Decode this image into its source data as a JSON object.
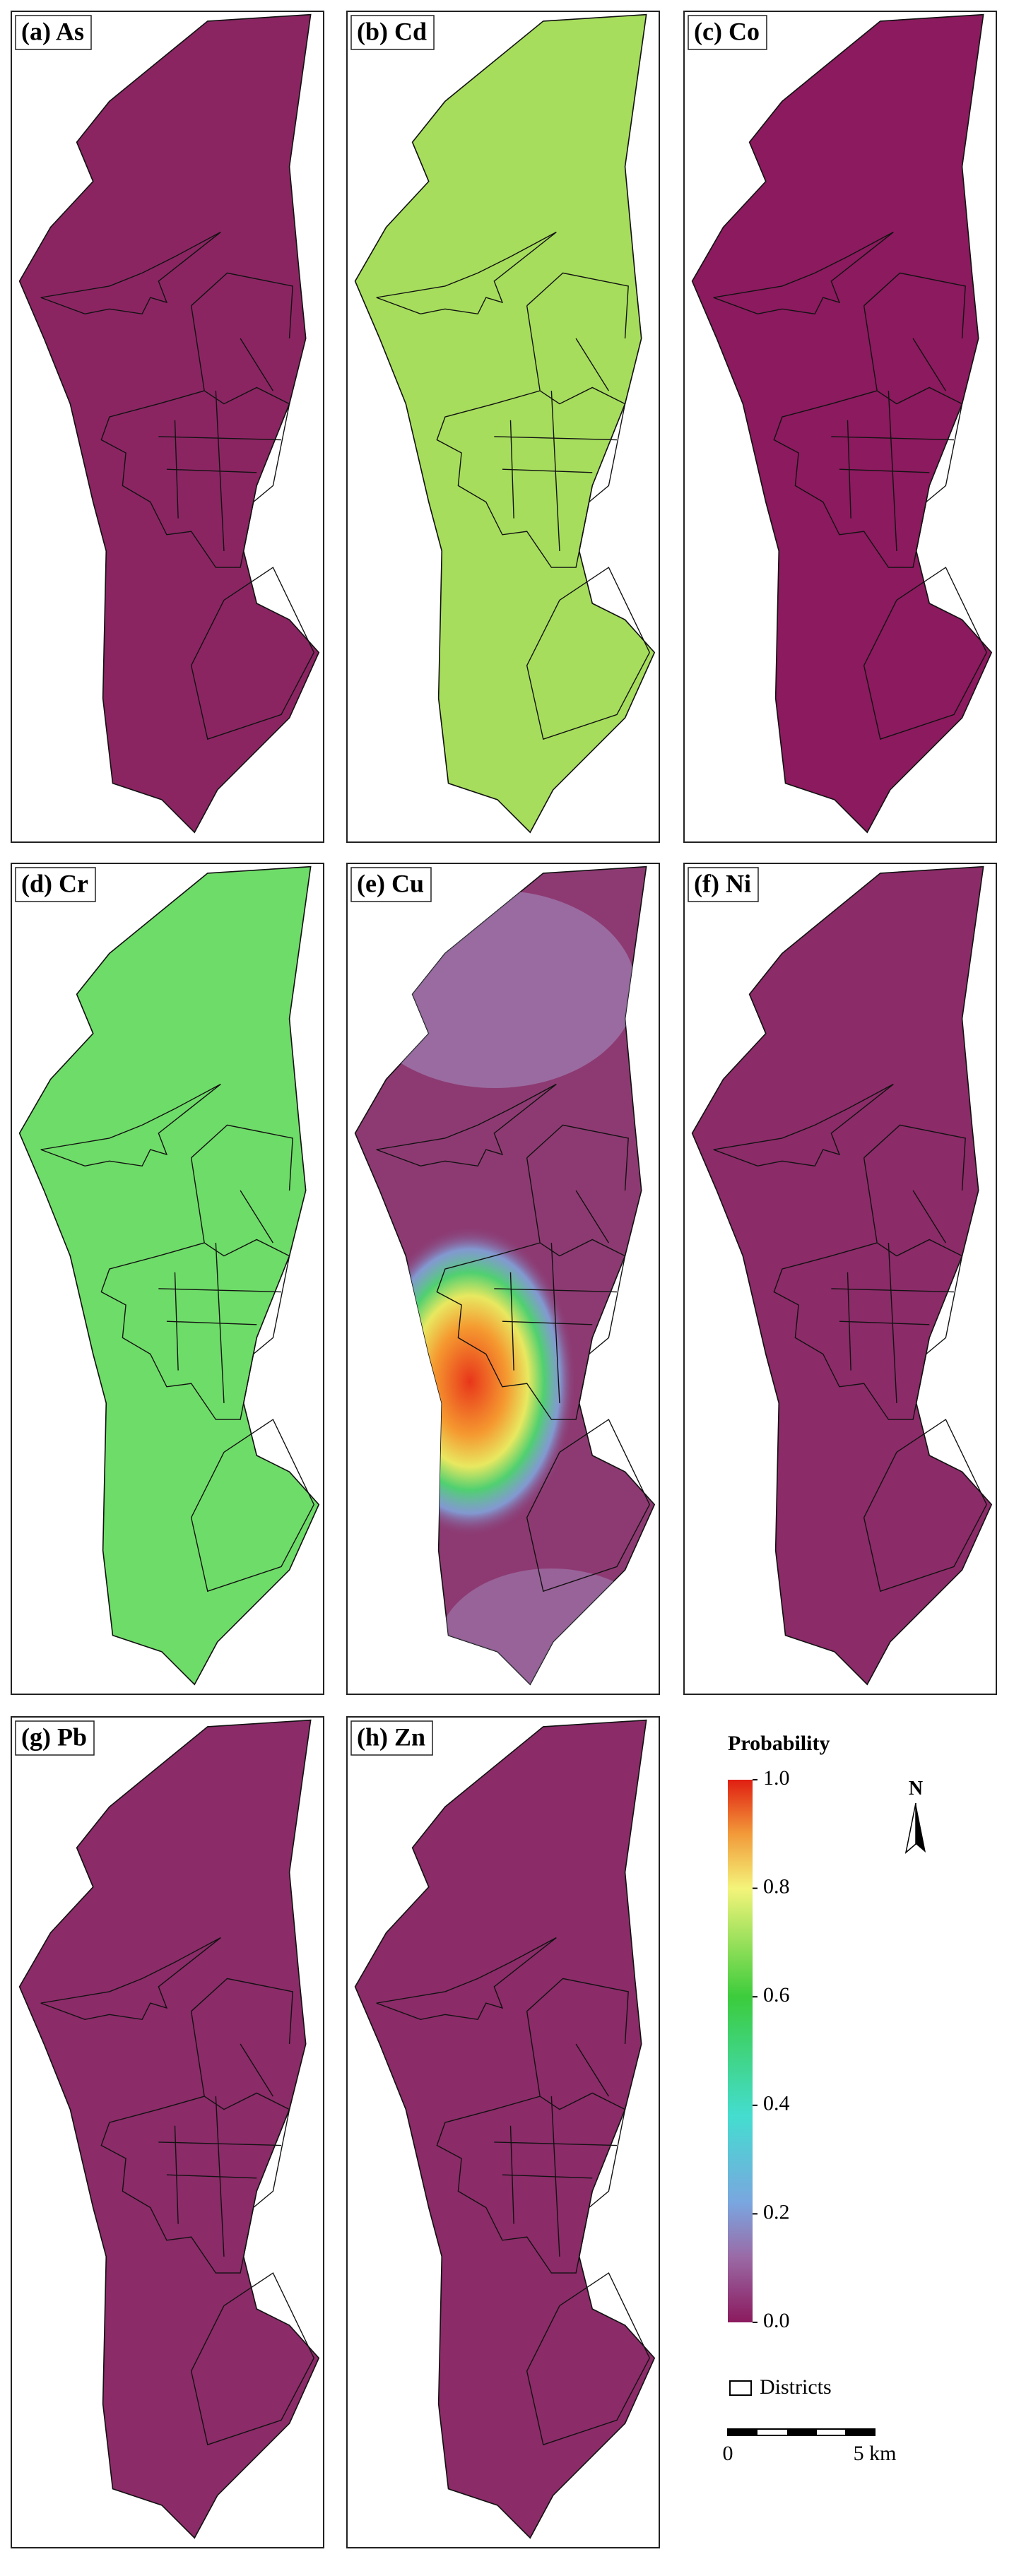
{
  "panels": [
    {
      "label": "(a) As",
      "color": "#8a2562"
    },
    {
      "label": "(b) Cd",
      "color": "#a6dd5c"
    },
    {
      "label": "(c) Co",
      "color": "#8b1a5e"
    },
    {
      "label": "(d) Cr",
      "color": "#6edc68"
    },
    {
      "label": "(e) Cu",
      "color": "#8d3a72"
    },
    {
      "label": "(f) Ni",
      "color": "#8b2b68"
    },
    {
      "label": "(g) Pb",
      "color": "#8b2b68"
    },
    {
      "label": "(h) Zn",
      "color": "#8b2b68"
    }
  ],
  "legend": {
    "title": "Probability",
    "lim": [
      0,
      1
    ],
    "ticks": [
      {
        "value": 0,
        "label": "0.0"
      },
      {
        "value": 0.2,
        "label": "0.2"
      },
      {
        "value": 0.4,
        "label": "0.4"
      },
      {
        "value": 0.6,
        "label": "0.6"
      },
      {
        "value": 0.8,
        "label": "0.8"
      },
      {
        "value": 1,
        "label": "1.0"
      }
    ],
    "districts": "Districts",
    "north": "N",
    "scale_start": "0",
    "scale_end": "5 km"
  }
}
